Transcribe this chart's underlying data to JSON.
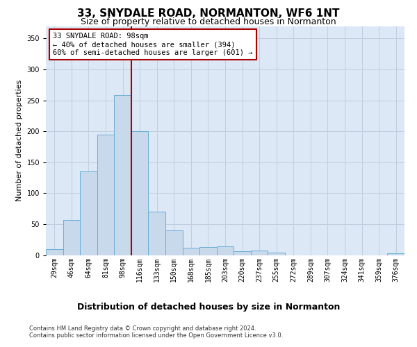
{
  "title": "33, SNYDALE ROAD, NORMANTON, WF6 1NT",
  "subtitle": "Size of property relative to detached houses in Normanton",
  "xlabel": "Distribution of detached houses by size in Normanton",
  "ylabel": "Number of detached properties",
  "bin_labels": [
    "29sqm",
    "46sqm",
    "64sqm",
    "81sqm",
    "98sqm",
    "116sqm",
    "133sqm",
    "150sqm",
    "168sqm",
    "185sqm",
    "203sqm",
    "220sqm",
    "237sqm",
    "255sqm",
    "272sqm",
    "289sqm",
    "307sqm",
    "324sqm",
    "341sqm",
    "359sqm",
    "376sqm"
  ],
  "bar_heights": [
    9,
    57,
    135,
    195,
    258,
    200,
    70,
    40,
    12,
    13,
    14,
    6,
    7,
    4,
    0,
    0,
    0,
    0,
    0,
    0,
    3
  ],
  "bar_color": "#c8d9ec",
  "bar_edge_color": "#6baed6",
  "vline_color": "#aa0000",
  "vline_x_index": 4,
  "annotation_text": "33 SNYDALE ROAD: 98sqm\n← 40% of detached houses are smaller (394)\n60% of semi-detached houses are larger (601) →",
  "annotation_box_edgecolor": "#aa0000",
  "ylim": [
    0,
    370
  ],
  "yticks": [
    0,
    50,
    100,
    150,
    200,
    250,
    300,
    350
  ],
  "grid_color": "#c0cfe0",
  "plot_bg_color": "#dce8f5",
  "fig_bg_color": "#ffffff",
  "footer_line1": "Contains HM Land Registry data © Crown copyright and database right 2024.",
  "footer_line2": "Contains public sector information licensed under the Open Government Licence v3.0.",
  "title_fontsize": 11,
  "subtitle_fontsize": 9,
  "tick_fontsize": 7,
  "ylabel_fontsize": 8,
  "annotation_fontsize": 7.5,
  "xlabel_fontsize": 9,
  "footer_fontsize": 6
}
